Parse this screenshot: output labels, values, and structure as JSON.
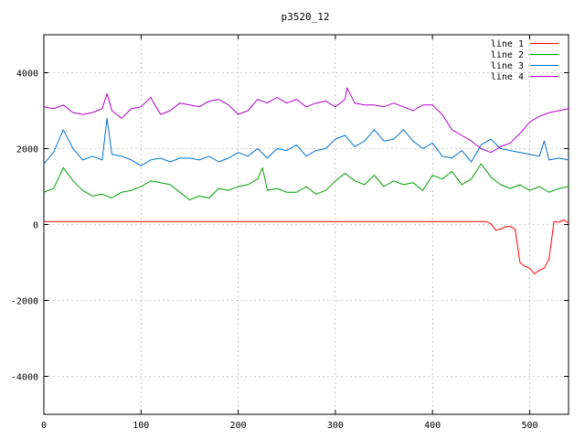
{
  "chart_data": {
    "type": "line",
    "title": "p3520_12",
    "xlabel": "",
    "ylabel": "",
    "xlim": [
      0,
      540
    ],
    "ylim": [
      -5000,
      5000
    ],
    "xticks": [
      0,
      100,
      200,
      300,
      400,
      500
    ],
    "yticks": [
      -4000,
      -2000,
      0,
      2000,
      4000
    ],
    "grid": true,
    "legend_position": "top-right",
    "series": [
      {
        "name": "line 1",
        "color": "#ff0000",
        "x": [
          0,
          100,
          200,
          300,
          400,
          455,
          460,
          465,
          470,
          475,
          480,
          485,
          490,
          495,
          500,
          505,
          510,
          515,
          520,
          525,
          530,
          535,
          540
        ],
        "y": [
          80,
          80,
          80,
          80,
          80,
          80,
          20,
          -150,
          -120,
          -60,
          -50,
          -120,
          -1000,
          -1100,
          -1150,
          -1300,
          -1200,
          -1150,
          -900,
          80,
          60,
          120,
          40
        ]
      },
      {
        "name": "line 2",
        "color": "#00a000",
        "x": [
          0,
          10,
          20,
          30,
          40,
          50,
          60,
          70,
          80,
          90,
          100,
          110,
          120,
          130,
          140,
          150,
          160,
          170,
          180,
          190,
          200,
          210,
          220,
          225,
          230,
          240,
          250,
          260,
          270,
          280,
          290,
          300,
          310,
          320,
          330,
          340,
          350,
          360,
          370,
          380,
          390,
          400,
          410,
          420,
          430,
          440,
          450,
          460,
          470,
          480,
          490,
          500,
          510,
          520,
          530,
          540
        ],
        "y": [
          850,
          950,
          1500,
          1150,
          900,
          750,
          800,
          700,
          850,
          900,
          1000,
          1150,
          1100,
          1050,
          850,
          650,
          750,
          700,
          950,
          900,
          1000,
          1050,
          1200,
          1500,
          900,
          950,
          850,
          850,
          1000,
          800,
          900,
          1150,
          1350,
          1150,
          1050,
          1300,
          1000,
          1150,
          1050,
          1100,
          900,
          1300,
          1200,
          1400,
          1050,
          1200,
          1600,
          1250,
          1050,
          950,
          1050,
          900,
          1000,
          850,
          950,
          1000
        ]
      },
      {
        "name": "line 3",
        "color": "#0070d0",
        "x": [
          0,
          10,
          20,
          30,
          40,
          50,
          60,
          65,
          70,
          80,
          90,
          100,
          110,
          120,
          130,
          140,
          150,
          160,
          170,
          180,
          190,
          200,
          210,
          220,
          230,
          240,
          250,
          260,
          270,
          280,
          290,
          300,
          310,
          320,
          330,
          340,
          350,
          360,
          370,
          380,
          390,
          400,
          410,
          420,
          430,
          440,
          450,
          460,
          470,
          480,
          490,
          500,
          510,
          515,
          520,
          530,
          540
        ],
        "y": [
          1600,
          1900,
          2500,
          2000,
          1700,
          1800,
          1700,
          2800,
          1850,
          1800,
          1700,
          1550,
          1700,
          1750,
          1650,
          1750,
          1750,
          1700,
          1800,
          1650,
          1750,
          1900,
          1800,
          2000,
          1750,
          2000,
          1950,
          2100,
          1800,
          1950,
          2000,
          2250,
          2350,
          2050,
          2200,
          2500,
          2200,
          2250,
          2500,
          2200,
          2000,
          2150,
          1800,
          1750,
          1950,
          1650,
          2100,
          2250,
          2000,
          1950,
          1900,
          1850,
          1800,
          2200,
          1700,
          1750,
          1700
        ]
      },
      {
        "name": "line 4",
        "color": "#b000c8",
        "x": [
          0,
          10,
          20,
          30,
          40,
          50,
          60,
          65,
          70,
          80,
          90,
          100,
          110,
          120,
          130,
          140,
          150,
          160,
          170,
          180,
          190,
          200,
          210,
          220,
          230,
          240,
          250,
          260,
          270,
          280,
          290,
          300,
          310,
          312,
          320,
          330,
          340,
          350,
          360,
          370,
          380,
          390,
          400,
          410,
          420,
          430,
          440,
          450,
          460,
          470,
          480,
          490,
          500,
          510,
          520,
          530,
          540
        ],
        "y": [
          3100,
          3050,
          3150,
          2950,
          2900,
          2950,
          3050,
          3450,
          3000,
          2800,
          3050,
          3100,
          3350,
          2900,
          3000,
          3200,
          3150,
          3100,
          3250,
          3300,
          3150,
          2900,
          3000,
          3300,
          3200,
          3350,
          3200,
          3300,
          3100,
          3200,
          3250,
          3100,
          3300,
          3600,
          3200,
          3150,
          3150,
          3100,
          3200,
          3100,
          3000,
          3150,
          3150,
          2900,
          2500,
          2350,
          2200,
          2000,
          1900,
          2050,
          2150,
          2400,
          2700,
          2850,
          2950,
          3000,
          3050
        ]
      }
    ]
  }
}
